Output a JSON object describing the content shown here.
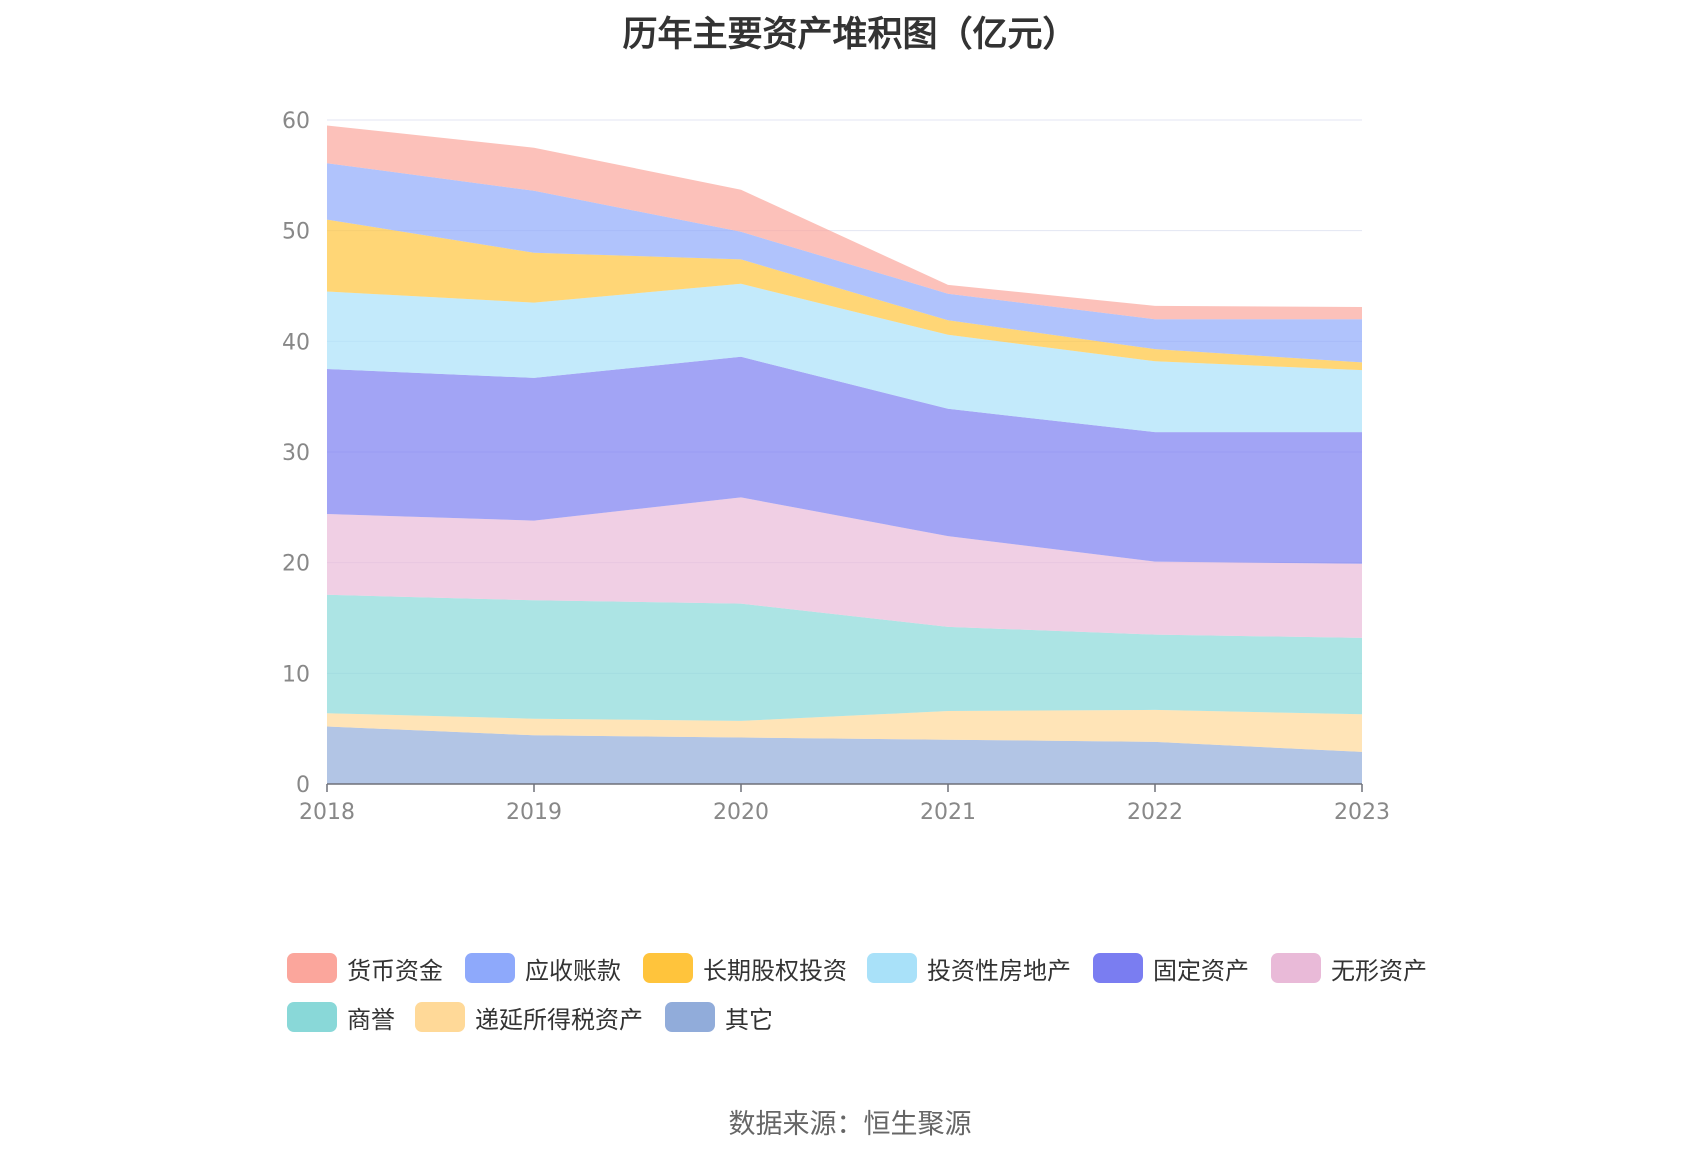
{
  "chart_data": {
    "type": "area",
    "stacked": true,
    "title": "历年主要资产堆积图（亿元）",
    "source": "数据来源：恒生聚源",
    "x": [
      "2018",
      "2019",
      "2020",
      "2021",
      "2022",
      "2023"
    ],
    "ylim": [
      0,
      60
    ],
    "yticks": [
      "0",
      "10",
      "20",
      "30",
      "40",
      "50",
      "60"
    ],
    "grid": true,
    "legend_position": "bottom",
    "series": [
      {
        "name": "其它",
        "color": "#91acda",
        "values": [
          5.2,
          4.4,
          4.2,
          4.0,
          3.8,
          2.9
        ]
      },
      {
        "name": "递延所得税资产",
        "color": "#ffd998",
        "values": [
          1.2,
          1.5,
          1.5,
          2.6,
          2.9,
          3.4
        ]
      },
      {
        "name": "商誉",
        "color": "#89d8d8",
        "values": [
          10.7,
          10.7,
          10.6,
          7.6,
          6.8,
          6.9
        ]
      },
      {
        "name": "无形资产",
        "color": "#e9bad8",
        "values": [
          7.3,
          7.2,
          9.6,
          8.2,
          6.6,
          6.7
        ]
      },
      {
        "name": "固定资产",
        "color": "#7a7df1",
        "values": [
          13.1,
          12.9,
          12.7,
          11.5,
          11.7,
          11.9
        ]
      },
      {
        "name": "投资性房地产",
        "color": "#a9e1f9",
        "values": [
          7.0,
          6.8,
          6.6,
          6.7,
          6.4,
          5.6
        ]
      },
      {
        "name": "长期股权投资",
        "color": "#ffc43c",
        "values": [
          6.5,
          4.5,
          2.2,
          1.3,
          1.1,
          0.7
        ]
      },
      {
        "name": "应收账款",
        "color": "#8ea9fb",
        "values": [
          5.1,
          5.6,
          2.5,
          2.4,
          2.7,
          3.9
        ]
      },
      {
        "name": "货币资金",
        "color": "#fba69c",
        "values": [
          3.4,
          3.9,
          3.8,
          0.8,
          1.2,
          1.1
        ]
      }
    ]
  }
}
